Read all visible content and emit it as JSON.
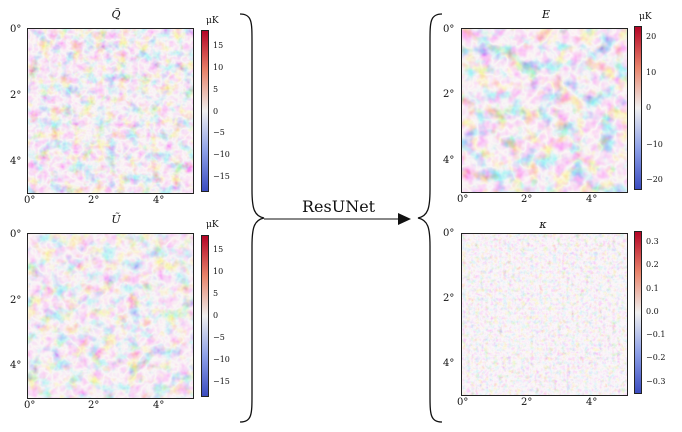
{
  "arrow": {
    "label": "ResUNet"
  },
  "panels": {
    "q": {
      "title": "Q̃",
      "y_ticks": [
        "0°",
        "2°",
        "4°"
      ],
      "x_ticks": [
        "0°",
        "2°",
        "4°"
      ],
      "colorbar": {
        "unit": "μK",
        "ticks": [
          "15",
          "10",
          "5",
          "0",
          "−5",
          "−10",
          "−15"
        ]
      }
    },
    "u": {
      "title": "Ũ",
      "y_ticks": [
        "0°",
        "2°",
        "4°"
      ],
      "x_ticks": [
        "0°",
        "2°",
        "4°"
      ],
      "colorbar": {
        "unit": "μK",
        "ticks": [
          "15",
          "10",
          "5",
          "0",
          "−5",
          "−10",
          "−15"
        ]
      }
    },
    "e": {
      "title": "E",
      "y_ticks": [
        "0°",
        "2°",
        "4°"
      ],
      "x_ticks": [
        "0°",
        "2°",
        "4°"
      ],
      "colorbar": {
        "unit": "μK",
        "ticks": [
          "20",
          "10",
          "0",
          "−10",
          "−20"
        ]
      }
    },
    "kappa": {
      "title": "κ",
      "y_ticks": [
        "0°",
        "2°",
        "4°"
      ],
      "x_ticks": [
        "0°",
        "2°",
        "4°"
      ],
      "colorbar": {
        "unit": "",
        "ticks": [
          "0.3",
          "0.2",
          "0.1",
          "0.0",
          "−0.1",
          "−0.2",
          "−0.3"
        ]
      }
    }
  },
  "colors": {
    "red": "#b2182b",
    "blue": "#3b4cc0",
    "white": "#f7f7f7"
  }
}
